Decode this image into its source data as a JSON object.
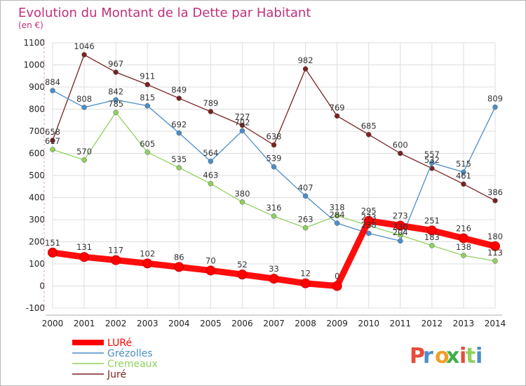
{
  "chart_data": {
    "type": "line",
    "title": "Evolution du Montant de la Dette par Habitant",
    "subtitle": "(en €)",
    "x": [
      2000,
      2001,
      2002,
      2003,
      2004,
      2005,
      2006,
      2007,
      2008,
      2009,
      2010,
      2011,
      2012,
      2013,
      2014
    ],
    "ylim": [
      -100,
      1100
    ],
    "yticks": [
      -100,
      0,
      100,
      200,
      300,
      400,
      500,
      600,
      700,
      800,
      900,
      1000,
      1100
    ],
    "grid": true,
    "legend_position": "bottom-left",
    "series": [
      {
        "name": "LURé",
        "color": "#ff0000",
        "values": [
          151,
          131,
          117,
          102,
          86,
          70,
          52,
          33,
          12,
          0,
          295,
          273,
          251,
          216,
          180
        ]
      },
      {
        "name": "Grézolles",
        "color": "#4a8ec9",
        "values": [
          884,
          808,
          842,
          815,
          692,
          564,
          702,
          539,
          407,
          284,
          238,
          204,
          557,
          515,
          809
        ]
      },
      {
        "name": "Cremeaux",
        "color": "#8fd15f",
        "values": [
          617,
          570,
          785,
          605,
          535,
          463,
          380,
          316,
          263,
          318,
          273,
          230,
          183,
          138,
          113
        ]
      },
      {
        "name": "Juré",
        "color": "#7a2222",
        "values": [
          658,
          1046,
          967,
          911,
          849,
          789,
          727,
          638,
          982,
          769,
          685,
          600,
          532,
          461,
          386
        ]
      }
    ]
  },
  "logo": {
    "letters": [
      "P",
      "r",
      "o",
      "x",
      "i",
      "t",
      "i"
    ],
    "colors": [
      "#e84b3a",
      "#4a8ec9",
      "#f0a028",
      "#3fae4a",
      "#e84b3a",
      "#8fd15f",
      "#4a8ec9"
    ]
  }
}
